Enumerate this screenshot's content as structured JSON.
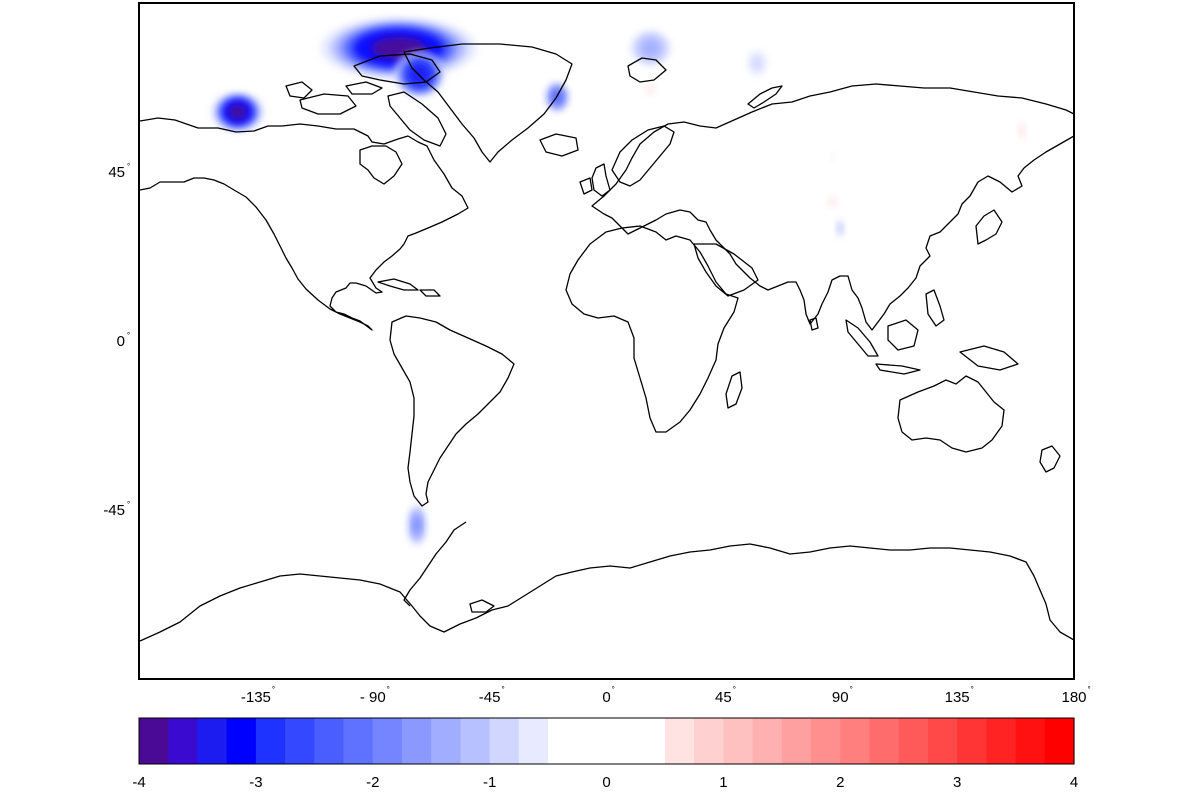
{
  "map": {
    "projection": "equirectangular",
    "lon_range": [
      -180,
      180
    ],
    "lat_range": [
      -90,
      90
    ],
    "lat_ticks": [
      {
        "value": 45,
        "label": "45"
      },
      {
        "value": 0,
        "label": "0"
      },
      {
        "value": -45,
        "label": "-45"
      }
    ],
    "lon_ticks": [
      {
        "value": -135,
        "label": "-135"
      },
      {
        "value": -90,
        "label": "- 90"
      },
      {
        "value": -45,
        "label": "-45"
      },
      {
        "value": 0,
        "label": "0"
      },
      {
        "value": 45,
        "label": "45"
      },
      {
        "value": 90,
        "label": "90"
      },
      {
        "value": 135,
        "label": "135"
      },
      {
        "value": 180,
        "label": "180"
      }
    ],
    "degree_symbol": "°",
    "coastline_color": "#000000",
    "land_fill": "#ffffff",
    "anomalies": [
      {
        "region": "canadian-arctic-archipelago",
        "lon": -80,
        "lat": 78,
        "rx": 30,
        "ry": 7,
        "value": -4
      },
      {
        "region": "baffin-island",
        "lon": -72,
        "lat": 71,
        "rx": 10,
        "ry": 5,
        "value": -3.5
      },
      {
        "region": "alaska-coast",
        "lon": -142,
        "lat": 61,
        "rx": 10,
        "ry": 4,
        "value": -4
      },
      {
        "region": "iceland",
        "lon": -19,
        "lat": 65,
        "rx": 5,
        "ry": 3,
        "value": -2.5
      },
      {
        "region": "svalbard",
        "lon": 17,
        "lat": 78,
        "rx": 9,
        "ry": 4,
        "value": -1.5
      },
      {
        "region": "novaya-zemlya",
        "lon": 58,
        "lat": 74,
        "rx": 6,
        "ry": 4,
        "value": -0.8
      },
      {
        "region": "patagonia",
        "lon": -73,
        "lat": -49,
        "rx": 4,
        "ry": 5,
        "value": -1.8
      },
      {
        "region": "scandinavia",
        "lon": 17,
        "lat": 67,
        "rx": 5,
        "ry": 2,
        "value": 0.6
      },
      {
        "region": "kamchatka",
        "lon": 160,
        "lat": 56,
        "rx": 2,
        "ry": 2,
        "value": 0.7
      },
      {
        "region": "central-siberia",
        "lon": 140,
        "lat": 60,
        "rx": 3,
        "ry": 2,
        "value": 0.3
      },
      {
        "region": "altai",
        "lon": 87,
        "lat": 49,
        "rx": 2,
        "ry": 1.5,
        "value": 0.5
      },
      {
        "region": "tien-shan",
        "lon": 80,
        "lat": 43,
        "rx": 2,
        "ry": 1.2,
        "value": -0.4
      },
      {
        "region": "karakoram",
        "lon": 87,
        "lat": 37,
        "rx": 5,
        "ry": 2,
        "value": 0.6
      },
      {
        "region": "himalaya-east",
        "lon": 90,
        "lat": 30,
        "rx": 2,
        "ry": 1.5,
        "value": -1.2
      },
      {
        "region": "himalaya-west",
        "lon": 81,
        "lat": 30,
        "rx": 1,
        "ry": 1,
        "value": -0.5
      }
    ]
  },
  "colorbar": {
    "min": -4,
    "max": 4,
    "step": 0.25,
    "ticks": [
      {
        "value": -4,
        "label": "-4"
      },
      {
        "value": -3,
        "label": "-3"
      },
      {
        "value": -2,
        "label": "-2"
      },
      {
        "value": -1,
        "label": "-1"
      },
      {
        "value": 0,
        "label": "0"
      },
      {
        "value": 1,
        "label": "1"
      },
      {
        "value": 2,
        "label": "2"
      },
      {
        "value": 3,
        "label": "3"
      },
      {
        "value": 4,
        "label": "4"
      }
    ],
    "negative_colors": [
      "#4b0a96",
      "#3a0ad0",
      "#1c1cf0",
      "#0000ff",
      "#1e33ff",
      "#3348ff",
      "#4a5eff",
      "#5f72ff",
      "#7585ff",
      "#8b99ff",
      "#a1adff",
      "#b8c1ff",
      "#d0d6ff",
      "#e8ebff",
      "#ffffff",
      "#ffffff"
    ],
    "positive_colors": [
      "#ffffff",
      "#ffffff",
      "#ffe3e3",
      "#ffd0d0",
      "#ffc0c0",
      "#ffb0b0",
      "#ffa0a0",
      "#ff8f8f",
      "#ff7f7f",
      "#ff6c6c",
      "#ff5a5a",
      "#ff4848",
      "#ff3535",
      "#ff2323",
      "#ff1111",
      "#ff0000"
    ]
  }
}
